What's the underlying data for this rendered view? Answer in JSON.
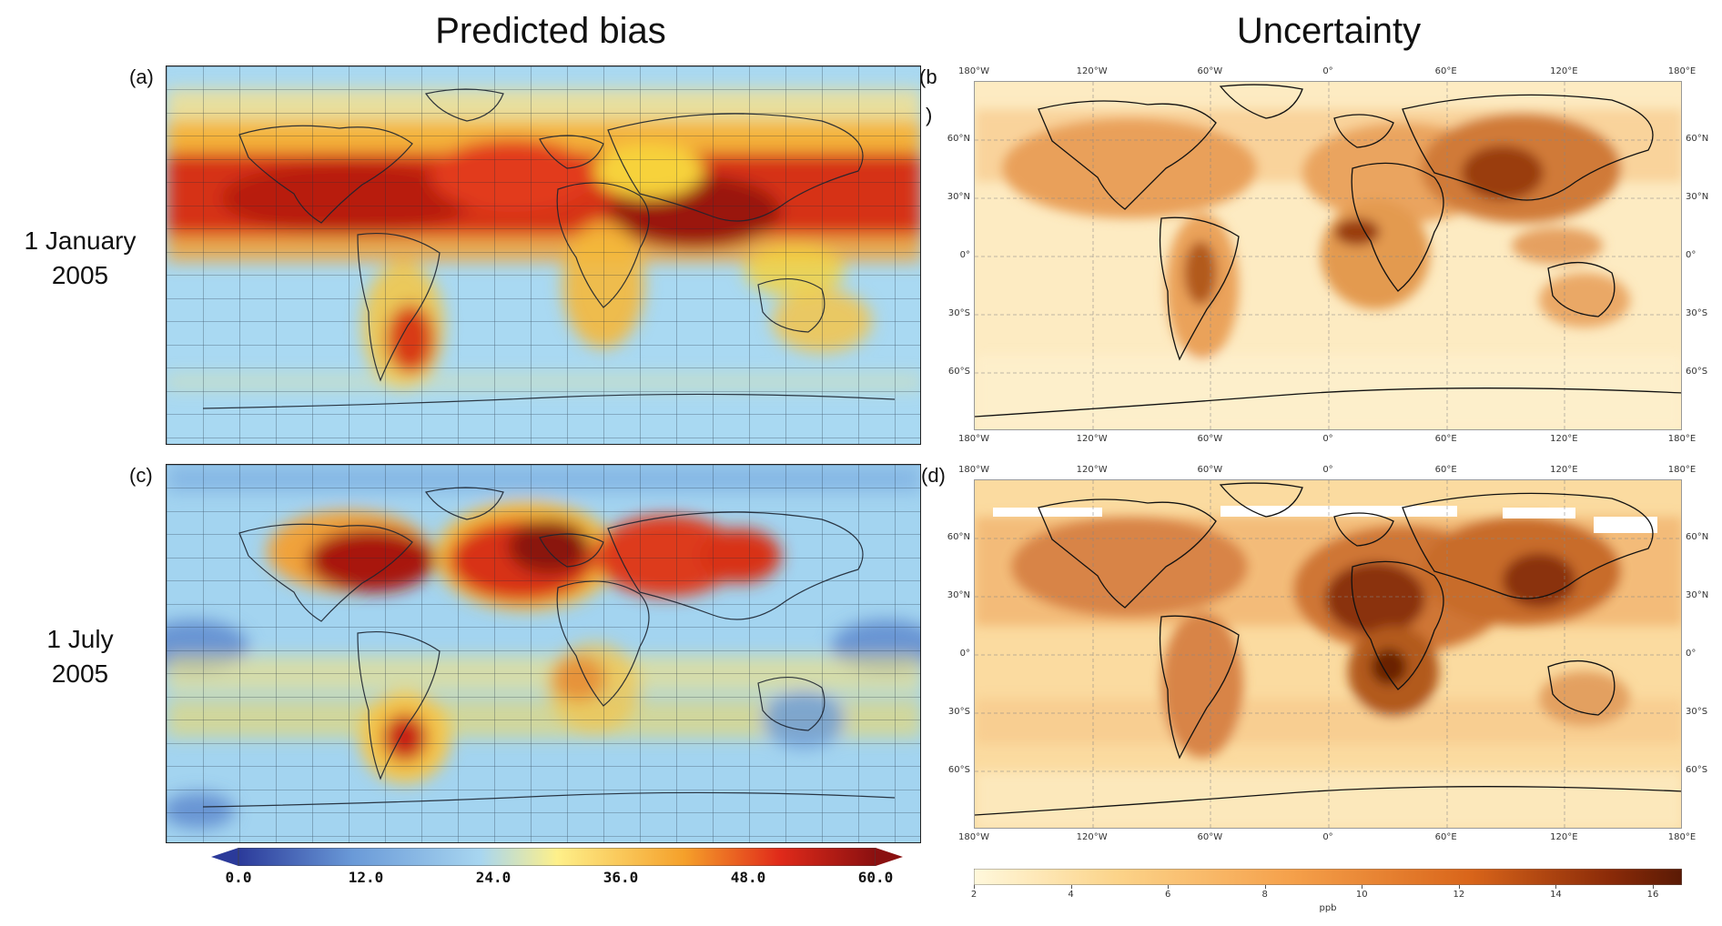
{
  "titles": {
    "left": "Predicted bias",
    "right": "Uncertainty"
  },
  "panels": {
    "a": "(a)",
    "b": "(b",
    "b_cont": ")",
    "c": "(c)",
    "d": "(d)"
  },
  "rows": {
    "jan": {
      "line1": "1 January",
      "line2": "2005"
    },
    "jul": {
      "line1": "1 July",
      "line2": "2005"
    }
  },
  "lon_ticks": [
    "180°W",
    "120°W",
    "60°W",
    "0°",
    "60°E",
    "120°E",
    "180°E"
  ],
  "lat_ticks": [
    "60°N",
    "30°N",
    "0°",
    "30°S",
    "60°S"
  ],
  "colorbar_bias": {
    "labels": [
      "0.0",
      "12.0",
      "24.0",
      "36.0",
      "48.0",
      "60.0"
    ],
    "colors": [
      "#2b3a9a",
      "#6a9ad8",
      "#a8d6f0",
      "#fef08a",
      "#f5a02a",
      "#e02a1a",
      "#8a1010"
    ],
    "extend": "both"
  },
  "colorbar_uncertainty": {
    "labels": [
      "2",
      "4",
      "6",
      "8",
      "10",
      "12",
      "14",
      "16"
    ],
    "unit": "ppb",
    "colors": [
      "#fff8dc",
      "#fcd48a",
      "#f5a04a",
      "#d9651a",
      "#8a2a08",
      "#5a1a05"
    ]
  },
  "colors": {
    "bias_ocean": "#a9d9f2",
    "bias_hot": "#d42a14",
    "bias_warm": "#f7d23a",
    "unc_bg": "#fdeac0",
    "unc_land": "#e79a48",
    "unc_dark": "#9a3c0a"
  }
}
